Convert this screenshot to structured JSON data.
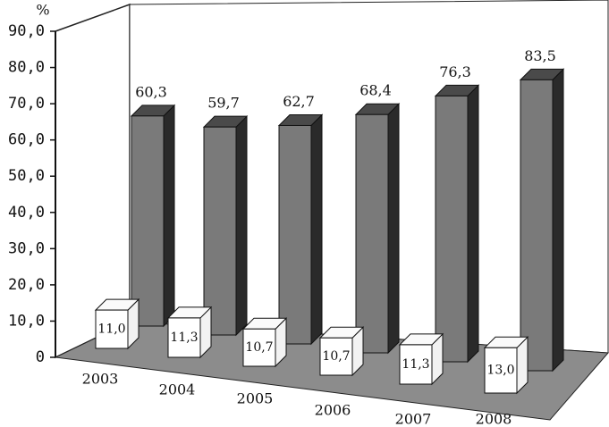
{
  "chart_data": {
    "type": "bar3d",
    "ylabel": "%",
    "categories": [
      "2003",
      "2004",
      "2005",
      "2006",
      "2007",
      "2008"
    ],
    "series": [
      {
        "color": "#7a7a7a",
        "values": [
          60.3,
          59.7,
          62.7,
          68.4,
          76.3,
          83.5
        ],
        "value_labels": [
          "60,3",
          "59,7",
          "62,7",
          "68,4",
          "76,3",
          "83,5"
        ]
      },
      {
        "color": "#ffffff",
        "values": [
          11.0,
          11.3,
          10.7,
          10.7,
          11.3,
          13.0
        ],
        "value_labels": [
          "11,0",
          "11,3",
          "10,7",
          "10,7",
          "11,3",
          "13,0"
        ]
      }
    ],
    "ylim": [
      0,
      90
    ],
    "yticks": [
      0,
      {
        "value": 10,
        "label": "10,0"
      },
      {
        "value": 20,
        "label": "20,0"
      },
      {
        "value": 30,
        "label": "30,0"
      },
      {
        "value": 40,
        "label": "40,0"
      },
      {
        "value": 50,
        "label": "50,0"
      },
      {
        "value": 60,
        "label": "60,0"
      },
      {
        "value": 70,
        "label": "70,0"
      },
      {
        "value": 80,
        "label": "80,0"
      },
      {
        "value": 90,
        "label": "90,0"
      }
    ]
  }
}
